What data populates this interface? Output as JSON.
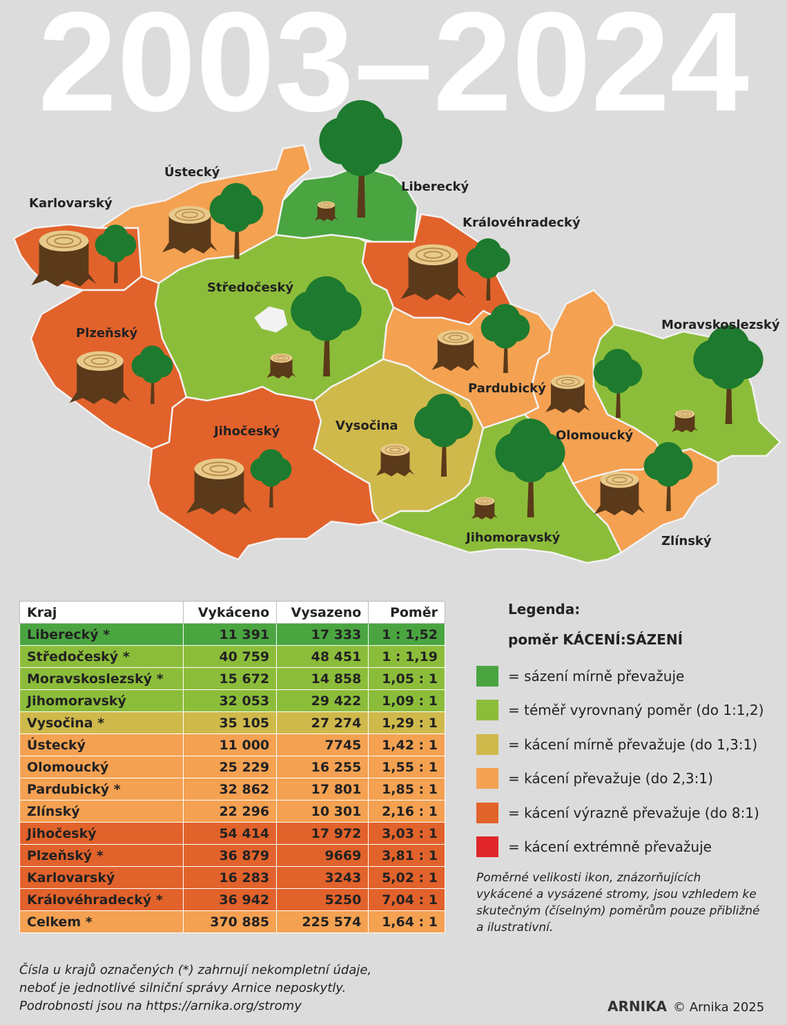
{
  "header": {
    "title": "2003–2024"
  },
  "map": {
    "regions": [
      {
        "label": "Karlovarský"
      },
      {
        "label": "Ústecký"
      },
      {
        "label": "Liberecký"
      },
      {
        "label": "Královéhradecký"
      },
      {
        "label": "Středočeský"
      },
      {
        "label": "Plzeňský"
      },
      {
        "label": "Moravskoslezský"
      },
      {
        "label": "Pardubický"
      },
      {
        "label": "Vysočina"
      },
      {
        "label": "Olomoucký"
      },
      {
        "label": "Jihočeský"
      },
      {
        "label": "Jihomoravský"
      },
      {
        "label": "Zlínský"
      }
    ]
  },
  "table": {
    "columns": [
      "Kraj",
      "Vykáceno",
      "Vysazeno",
      "Poměr"
    ],
    "rows": [
      [
        "Liberecký *",
        "11 391",
        "17 333",
        "1 : 1,52"
      ],
      [
        "Středočeský *",
        "40 759",
        "48 451",
        "1 : 1,19"
      ],
      [
        "Moravskoslezský *",
        "15 672",
        "14 858",
        "1,05 : 1"
      ],
      [
        "Jihomoravský",
        "32 053",
        "29 422",
        "1,09 : 1"
      ],
      [
        "Vysočina *",
        "35 105",
        "27 274",
        "1,29 : 1"
      ],
      [
        "Ústecký",
        "11 000",
        "7745",
        "1,42 : 1"
      ],
      [
        "Olomoucký",
        "25 229",
        "16 255",
        "1,55 : 1"
      ],
      [
        "Pardubický *",
        "32 862",
        "17 801",
        "1,85 : 1"
      ],
      [
        "Zlínský",
        "22 296",
        "10 301",
        "2,16 : 1"
      ],
      [
        "Jihočeský",
        "54 414",
        "17 972",
        "3,03 : 1"
      ],
      [
        "Plzeňský *",
        "36 879",
        "9669",
        "3,81 : 1"
      ],
      [
        "Karlovarský",
        "16 283",
        "3243",
        "5,02 : 1"
      ],
      [
        "Královéhradecký *",
        "36 942",
        "5250",
        "7,04 : 1"
      ]
    ],
    "total": [
      "Celkem *",
      "370 885",
      "225 574",
      "1,64 : 1"
    ]
  },
  "legend": {
    "title": "Legenda:",
    "subtitle": "poměr KÁCENÍ:SÁZENÍ",
    "items": [
      "= sázení mírně převažuje",
      "= téměř vyrovnaný poměr (do 1:1,2)",
      "= kácení mírně převažuje (do 1,3:1)",
      "= kácení převažuje (do 2,3:1)",
      "= kácení výrazně převažuje (do 8:1)",
      "= kácení extrémně převažuje"
    ],
    "note": [
      "Poměrné velikosti ikon, znázorňujících",
      "vykácené a vysázené stromy, jsou vzhledem ke",
      "skutečným (číselným) poměrům pouze přibližné",
      "a ilustrativní."
    ]
  },
  "footnote": [
    "Čísla u krajů označených (*) zahrnují nekompletní údaje,",
    "neboť je jednotlivé silniční správy Arnice neposkytly.",
    "Podrobnosti jsou na https://arnika.org/stromy"
  ],
  "footer": {
    "logo": "ARNIKA",
    "copyright": "© Arnika 2025"
  }
}
